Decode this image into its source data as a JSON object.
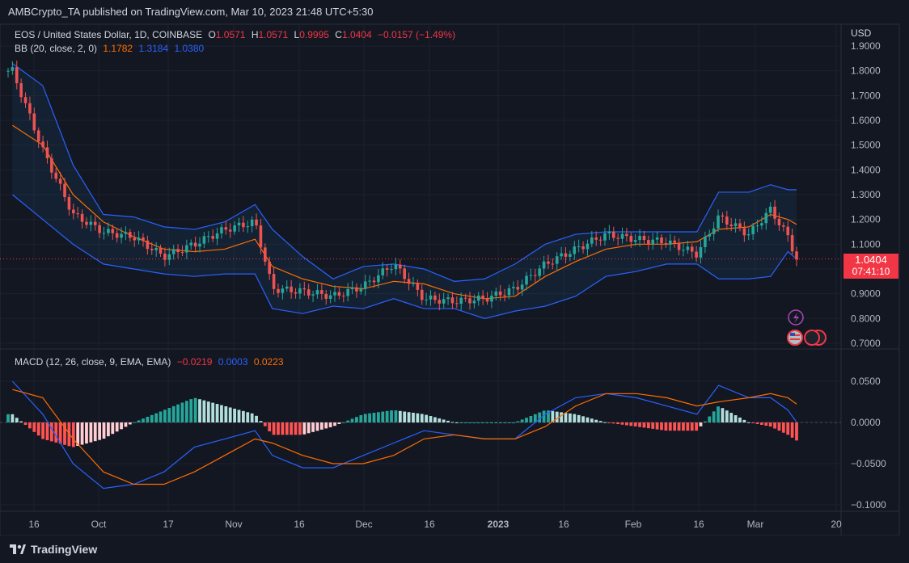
{
  "header": {
    "text": "AMBCrypto_TA published on TradingView.com, Mar 10, 2023 21:48 UTC+5:30"
  },
  "legend": {
    "symbol": "EOS / United States Dollar, 1D, COINBASE",
    "o_label": "O",
    "o_value": "1.0571",
    "h_label": "H",
    "h_value": "1.0571",
    "l_label": "L",
    "l_value": "0.9995",
    "c_label": "C",
    "c_value": "1.0404",
    "change": "−0.0157 (−1.49%)",
    "bb_label": "BB (20, close, 2, 0)",
    "bb_basis": "1.1782",
    "bb_upper": "1.3184",
    "bb_lower": "1.0380",
    "macd_label": "MACD (12, 26, close, 9, EMA, EMA)",
    "macd_hist": "−0.0219",
    "macd_line": "0.0003",
    "macd_signal": "0.0223"
  },
  "price_axis": {
    "unit": "USD",
    "ticks": [
      "1.9000",
      "1.8000",
      "1.7000",
      "1.6000",
      "1.5000",
      "1.4000",
      "1.3000",
      "1.2000",
      "1.1000",
      "1.0000",
      "0.9000",
      "0.8000",
      "0.7000"
    ],
    "current_price": "1.0404",
    "countdown": "07:41:10"
  },
  "macd_axis": {
    "ticks": [
      "0.0500",
      "0.0000",
      "−0.0500",
      "−0.1000"
    ]
  },
  "time_axis": {
    "labels": [
      "16",
      "Oct",
      "17",
      "Nov",
      "16",
      "Dec",
      "16",
      "2023",
      "16",
      "Feb",
      "16",
      "Mar",
      "20"
    ]
  },
  "footer": {
    "brand": "TradingView"
  },
  "colors": {
    "background": "#131722",
    "up": "#26a69a",
    "down": "#ef5350",
    "bb_band": "#2962ff",
    "bb_basis": "#ff6d00",
    "macd_line": "#2962ff",
    "signal_line": "#ff6d00",
    "hist_up_strong": "#26a69a",
    "hist_up_weak": "#b2dfdb",
    "hist_down_strong": "#ff5252",
    "hist_down_weak": "#ffcdd2"
  },
  "chart_data": [
    {
      "type": "candlestick",
      "title": "EOS / United States Dollar, 1D, COINBASE",
      "ylabel": "USD",
      "ylim": [
        0.7,
        1.9
      ],
      "x_range": [
        "2022-09-09",
        "2023-03-10"
      ],
      "series": [
        {
          "name": "price_close",
          "x": [
            "2022-09-10",
            "2022-09-17",
            "2022-09-24",
            "2022-10-01",
            "2022-10-08",
            "2022-10-15",
            "2022-10-22",
            "2022-10-29",
            "2022-11-05",
            "2022-11-09",
            "2022-11-16",
            "2022-11-23",
            "2022-11-30",
            "2022-12-07",
            "2022-12-14",
            "2022-12-21",
            "2022-12-28",
            "2023-01-04",
            "2023-01-11",
            "2023-01-18",
            "2023-01-25",
            "2023-02-01",
            "2023-02-08",
            "2023-02-15",
            "2023-02-20",
            "2023-02-27",
            "2023-03-04",
            "2023-03-08",
            "2023-03-10"
          ],
          "values": [
            1.8,
            1.48,
            1.22,
            1.15,
            1.13,
            1.05,
            1.1,
            1.16,
            1.19,
            0.92,
            0.91,
            0.89,
            0.93,
            1.02,
            0.88,
            0.87,
            0.88,
            0.92,
            1.02,
            1.08,
            1.14,
            1.12,
            1.11,
            1.06,
            1.21,
            1.14,
            1.24,
            1.13,
            1.04
          ]
        },
        {
          "name": "BB upper",
          "values": [
            1.83,
            1.74,
            1.42,
            1.22,
            1.21,
            1.17,
            1.16,
            1.19,
            1.26,
            1.16,
            1.05,
            0.96,
            1.01,
            1.02,
            1.0,
            0.95,
            0.96,
            1.02,
            1.1,
            1.14,
            1.15,
            1.15,
            1.15,
            1.15,
            1.31,
            1.31,
            1.34,
            1.32,
            1.32
          ]
        },
        {
          "name": "BB basis",
          "values": [
            1.58,
            1.5,
            1.3,
            1.19,
            1.13,
            1.08,
            1.07,
            1.08,
            1.12,
            1.01,
            0.96,
            0.93,
            0.92,
            0.95,
            0.94,
            0.9,
            0.88,
            0.89,
            0.97,
            1.03,
            1.08,
            1.1,
            1.1,
            1.11,
            1.16,
            1.17,
            1.22,
            1.2,
            1.18
          ]
        },
        {
          "name": "BB lower",
          "values": [
            1.3,
            1.2,
            1.1,
            1.02,
            1.0,
            0.98,
            0.97,
            0.98,
            0.98,
            0.84,
            0.82,
            0.85,
            0.84,
            0.88,
            0.84,
            0.84,
            0.8,
            0.83,
            0.85,
            0.89,
            0.97,
            0.99,
            1.02,
            1.02,
            0.96,
            0.96,
            0.97,
            1.07,
            1.04
          ]
        }
      ]
    },
    {
      "type": "bar",
      "title": "MACD (12, 26, close, 9, EMA, EMA)",
      "ylim": [
        -0.1,
        0.05
      ],
      "series": [
        {
          "name": "MACD line",
          "values": [
            0.05,
            0.01,
            -0.05,
            -0.08,
            -0.075,
            -0.06,
            -0.03,
            -0.02,
            -0.01,
            -0.04,
            -0.055,
            -0.055,
            -0.04,
            -0.025,
            -0.01,
            -0.015,
            -0.02,
            -0.02,
            0.01,
            0.03,
            0.035,
            0.03,
            0.02,
            0.01,
            0.045,
            0.03,
            0.03,
            0.015,
            0.0003
          ]
        },
        {
          "name": "signal line",
          "values": [
            0.04,
            0.03,
            -0.02,
            -0.06,
            -0.075,
            -0.075,
            -0.06,
            -0.04,
            -0.02,
            -0.025,
            -0.04,
            -0.05,
            -0.05,
            -0.04,
            -0.02,
            -0.015,
            -0.02,
            -0.02,
            -0.005,
            0.02,
            0.035,
            0.035,
            0.03,
            0.02,
            0.025,
            0.03,
            0.035,
            0.03,
            0.0223
          ]
        },
        {
          "name": "histogram",
          "values": [
            0.01,
            -0.02,
            -0.03,
            -0.02,
            0.0,
            0.015,
            0.03,
            0.02,
            0.01,
            -0.015,
            -0.015,
            -0.005,
            0.01,
            0.015,
            0.01,
            0.0,
            0.0,
            0.0,
            0.015,
            0.01,
            0.0,
            -0.005,
            -0.01,
            -0.01,
            0.02,
            0.0,
            -0.005,
            -0.015,
            -0.0219
          ]
        }
      ]
    }
  ]
}
